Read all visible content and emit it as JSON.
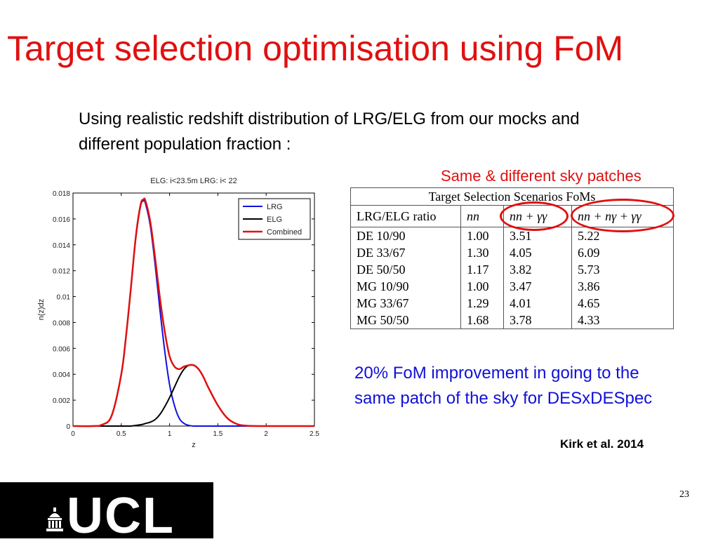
{
  "slide": {
    "title": "Target selection optimisation using FoM",
    "intro": "Using realistic redshift distribution of LRG/ELG from our mocks and different population fraction :",
    "patch_note": "Same & different sky patches",
    "improvement": "20% FoM improvement in going to the same patch of the sky for DESxDESpec",
    "reference": "Kirk et al. 2014",
    "page_number": "23",
    "logo_text": "UCL"
  },
  "table": {
    "caption": "Target Selection Scenarios FoMs",
    "headers": [
      "LRG/ELG ratio",
      "nn",
      "nn + γγ",
      "nn + nγ + γγ"
    ],
    "rows": [
      [
        "DE 10/90",
        "1.00",
        "3.51",
        "5.22"
      ],
      [
        "DE 33/67",
        "1.30",
        "4.05",
        "6.09"
      ],
      [
        "DE 50/50",
        "1.17",
        "3.82",
        "5.73"
      ],
      [
        "MG 10/90",
        "1.00",
        "3.47",
        "3.86"
      ],
      [
        "MG 33/67",
        "1.29",
        "4.01",
        "4.65"
      ],
      [
        "MG 50/50",
        "1.68",
        "3.78",
        "4.33"
      ]
    ],
    "highlight_color": "#e01010"
  },
  "chart_data": {
    "type": "line",
    "title": "ELG: i<23.5m LRG: i< 22",
    "xlabel": "z",
    "ylabel": "n(z)dz",
    "xlim": [
      0,
      2.5
    ],
    "ylim": [
      0,
      0.018
    ],
    "xticks": [
      "0",
      "0.5",
      "1",
      "1.5",
      "2",
      "2.5"
    ],
    "yticks": [
      "0",
      "0.002",
      "0.004",
      "0.006",
      "0.008",
      "0.01",
      "0.012",
      "0.014",
      "0.016",
      "0.018"
    ],
    "legend_position": "top-right",
    "grid": false,
    "x": [
      0,
      0.2,
      0.3,
      0.4,
      0.5,
      0.55,
      0.6,
      0.65,
      0.7,
      0.73,
      0.75,
      0.8,
      0.85,
      0.9,
      0.95,
      1.0,
      1.05,
      1.1,
      1.15,
      1.2,
      1.25,
      1.3,
      1.35,
      1.4,
      1.5,
      1.6,
      1.7,
      1.8,
      2.0,
      2.5
    ],
    "series": [
      {
        "name": "LRG",
        "color": "#1010e0",
        "values": [
          0,
          0,
          0.0001,
          0.0008,
          0.004,
          0.007,
          0.0107,
          0.0145,
          0.017,
          0.0174,
          0.0172,
          0.0155,
          0.0125,
          0.009,
          0.0058,
          0.0032,
          0.0016,
          0.0006,
          0.0002,
          5e-05,
          0,
          0,
          0,
          0,
          0,
          0,
          0,
          0,
          0,
          0
        ]
      },
      {
        "name": "ELG",
        "color": "#000000",
        "values": [
          0,
          0,
          0,
          0,
          0,
          0,
          0,
          5e-05,
          0.0001,
          0.00015,
          0.0002,
          0.0003,
          0.0005,
          0.0009,
          0.0015,
          0.0022,
          0.003,
          0.0038,
          0.0044,
          0.0047,
          0.0047,
          0.0044,
          0.0038,
          0.003,
          0.0016,
          0.0006,
          0.00015,
          3e-05,
          0,
          0
        ]
      },
      {
        "name": "Combined",
        "color": "#e01010",
        "values": [
          0,
          0,
          0.0001,
          0.0008,
          0.004,
          0.007,
          0.0107,
          0.0146,
          0.0171,
          0.0175,
          0.0174,
          0.0158,
          0.013,
          0.0099,
          0.0073,
          0.0054,
          0.0046,
          0.0044,
          0.0046,
          0.0047,
          0.0047,
          0.0044,
          0.0038,
          0.003,
          0.0016,
          0.0006,
          0.00015,
          3e-05,
          0,
          0
        ]
      }
    ]
  }
}
